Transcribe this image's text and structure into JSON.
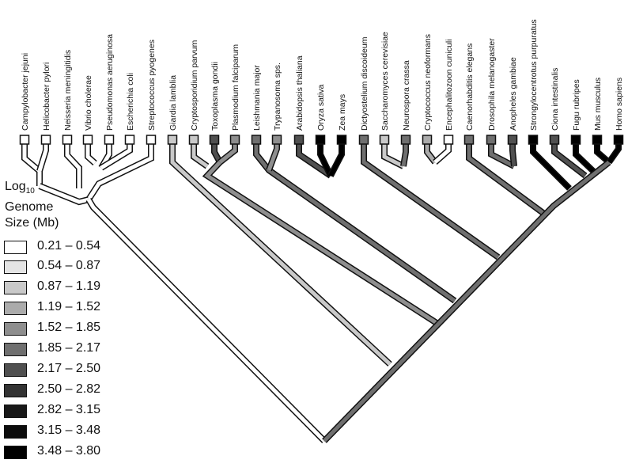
{
  "legend": {
    "title_line1": "Log",
    "title_sub": "10",
    "title_line2": "Genome",
    "title_line3": "Size (Mb)",
    "bins": [
      {
        "range": "0.21 – 0.54",
        "color": "#ffffff"
      },
      {
        "range": "0.54 – 0.87",
        "color": "#e4e4e4"
      },
      {
        "range": "0.87 – 1.19",
        "color": "#c9c9c9"
      },
      {
        "range": "1.19 – 1.52",
        "color": "#ababab"
      },
      {
        "range": "1.52 – 1.85",
        "color": "#8e8e8e"
      },
      {
        "range": "1.85 – 2.17",
        "color": "#6f6f6f"
      },
      {
        "range": "2.17 – 2.50",
        "color": "#505050"
      },
      {
        "range": "2.50 – 2.82",
        "color": "#333333"
      },
      {
        "range": "2.82 – 3.15",
        "color": "#181818"
      },
      {
        "range": "3.15 – 3.48",
        "color": "#0c0c0c"
      },
      {
        "range": "3.48 – 3.80",
        "color": "#000000"
      }
    ]
  },
  "taxa": [
    {
      "name": "Campylobacter jejuni",
      "color": "#ffffff"
    },
    {
      "name": "Helicobacter pylori",
      "color": "#ffffff"
    },
    {
      "name": "Neisseria meningitidis",
      "color": "#ffffff"
    },
    {
      "name": "Vibrio cholerae",
      "color": "#ffffff"
    },
    {
      "name": "Pseudomonas aeruginosa",
      "color": "#ffffff"
    },
    {
      "name": "Escherichia coli",
      "color": "#ffffff"
    },
    {
      "name": "Streptococcus pyogenes",
      "color": "#ffffff"
    },
    {
      "name": "Giardia lamblia",
      "color": "#c9c9c9"
    },
    {
      "name": "Cryptosporidium parvum",
      "color": "#c9c9c9"
    },
    {
      "name": "Toxoplasma gondii",
      "color": "#505050"
    },
    {
      "name": "Plasmodium falciparum",
      "color": "#8e8e8e"
    },
    {
      "name": "Leishmania major",
      "color": "#6f6f6f"
    },
    {
      "name": "Trypanosoma sps.",
      "color": "#8e8e8e"
    },
    {
      "name": "Arabidopsis thaliana",
      "color": "#505050"
    },
    {
      "name": "Oryza sativa",
      "color": "#000000"
    },
    {
      "name": "Zea mays",
      "color": "#000000"
    },
    {
      "name": "Dictyostelium discoideum",
      "color": "#6f6f6f"
    },
    {
      "name": "Saccharomyces cerevisiae",
      "color": "#c9c9c9"
    },
    {
      "name": "Neurospora crassa",
      "color": "#6f6f6f"
    },
    {
      "name": "Cryptococcus neoformans",
      "color": "#ababab"
    },
    {
      "name": "Encephalitozoon cuniculi",
      "color": "#ffffff"
    },
    {
      "name": "Caenorhabditis elegans",
      "color": "#6f6f6f"
    },
    {
      "name": "Drosophila melanogaster",
      "color": "#6f6f6f"
    },
    {
      "name": "Anopheles gambiae",
      "color": "#505050"
    },
    {
      "name": "Strongylocentrotus purpuratus",
      "color": "#000000"
    },
    {
      "name": "Ciona intestinalis",
      "color": "#505050"
    },
    {
      "name": "Fugu rubripes",
      "color": "#000000"
    },
    {
      "name": "Mus musculus",
      "color": "#000000"
    },
    {
      "name": "Homo sapiens",
      "color": "#000000"
    }
  ]
}
